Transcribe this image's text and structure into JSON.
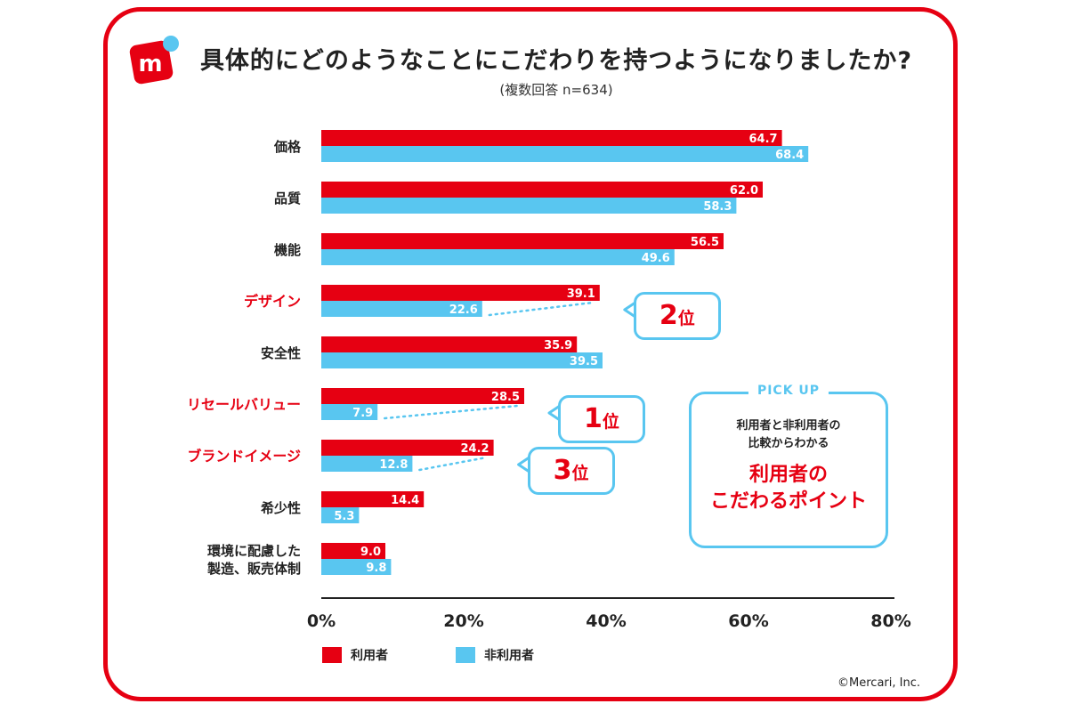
{
  "header": {
    "title": "具体的にどのようなことにこだわりを持つようになりましたか?",
    "subtitle": "(複数回答 n=634)"
  },
  "chart_data": {
    "type": "bar",
    "orientation": "horizontal",
    "categories": [
      "価格",
      "品質",
      "機能",
      "デザイン",
      "安全性",
      "リセールバリュー",
      "ブランドイメージ",
      "希少性",
      "環境に配慮した\n製造、販売体制"
    ],
    "highlighted": [
      "デザイン",
      "リセールバリュー",
      "ブランドイメージ"
    ],
    "series": [
      {
        "name": "利用者",
        "color": "#e60012",
        "values": [
          64.7,
          62.0,
          56.5,
          39.1,
          35.9,
          28.5,
          24.2,
          14.4,
          9.0
        ]
      },
      {
        "name": "非利用者",
        "color": "#59c6f0",
        "values": [
          68.4,
          58.3,
          49.6,
          22.6,
          39.5,
          7.9,
          12.8,
          5.3,
          9.8
        ]
      }
    ],
    "xlim": [
      0,
      80
    ],
    "xticks": [
      "0%",
      "20%",
      "40%",
      "60%",
      "80%"
    ],
    "grid": false,
    "legend_position": "bottom-left"
  },
  "rank_callouts": [
    {
      "category": "デザイン",
      "num": "2",
      "unit": "位"
    },
    {
      "category": "リセールバリュー",
      "num": "1",
      "unit": "位"
    },
    {
      "category": "ブランドイメージ",
      "num": "3",
      "unit": "位"
    }
  ],
  "legend": {
    "items": [
      "利用者",
      "非利用者"
    ]
  },
  "pickup": {
    "tag": "PICK UP",
    "line1": "利用者と非利用者の",
    "line2": "比較からわかる",
    "main1": "利用者の",
    "main2": "こだわるポイント"
  },
  "credit": "©Mercari, Inc.",
  "colors": {
    "accent": "#e60012",
    "secondary": "#59c6f0"
  }
}
